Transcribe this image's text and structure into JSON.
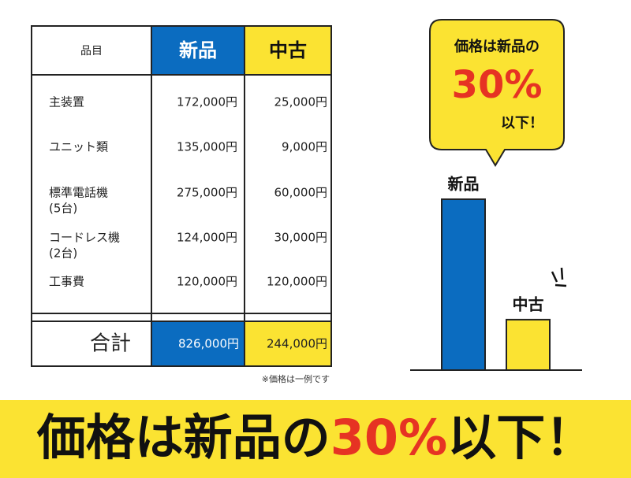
{
  "table": {
    "header": [
      "品目",
      "新品",
      "中古"
    ],
    "rows": [
      {
        "item": "主装置",
        "new": "172,000円",
        "used": "25,000円"
      },
      {
        "item": "ユニット類",
        "new": "135,000円",
        "used": "9,000円"
      },
      {
        "item": "標準電話機",
        "sub": "(5台)",
        "new": "275,000円",
        "used": "60,000円"
      },
      {
        "item": "コードレス機",
        "sub": "(2台)",
        "new": "124,000円",
        "used": "30,000円"
      },
      {
        "item": "工事費",
        "new": "120,000円",
        "used": "120,000円"
      }
    ],
    "total": [
      "合計",
      "826,000円",
      "244,000円"
    ],
    "note": "※価格は一例です"
  },
  "callout": {
    "line1": "価格は新品の",
    "highlight": "30%",
    "line3": "以下！"
  },
  "chart_data": {
    "type": "bar",
    "categories": [
      "新品",
      "中古"
    ],
    "values": [
      826000,
      244000
    ],
    "colors": [
      "#0b6cc0",
      "#fbe332"
    ]
  },
  "banner": {
    "text": "価格は新品の",
    "highlight": "30%",
    "tail": "以下！"
  }
}
